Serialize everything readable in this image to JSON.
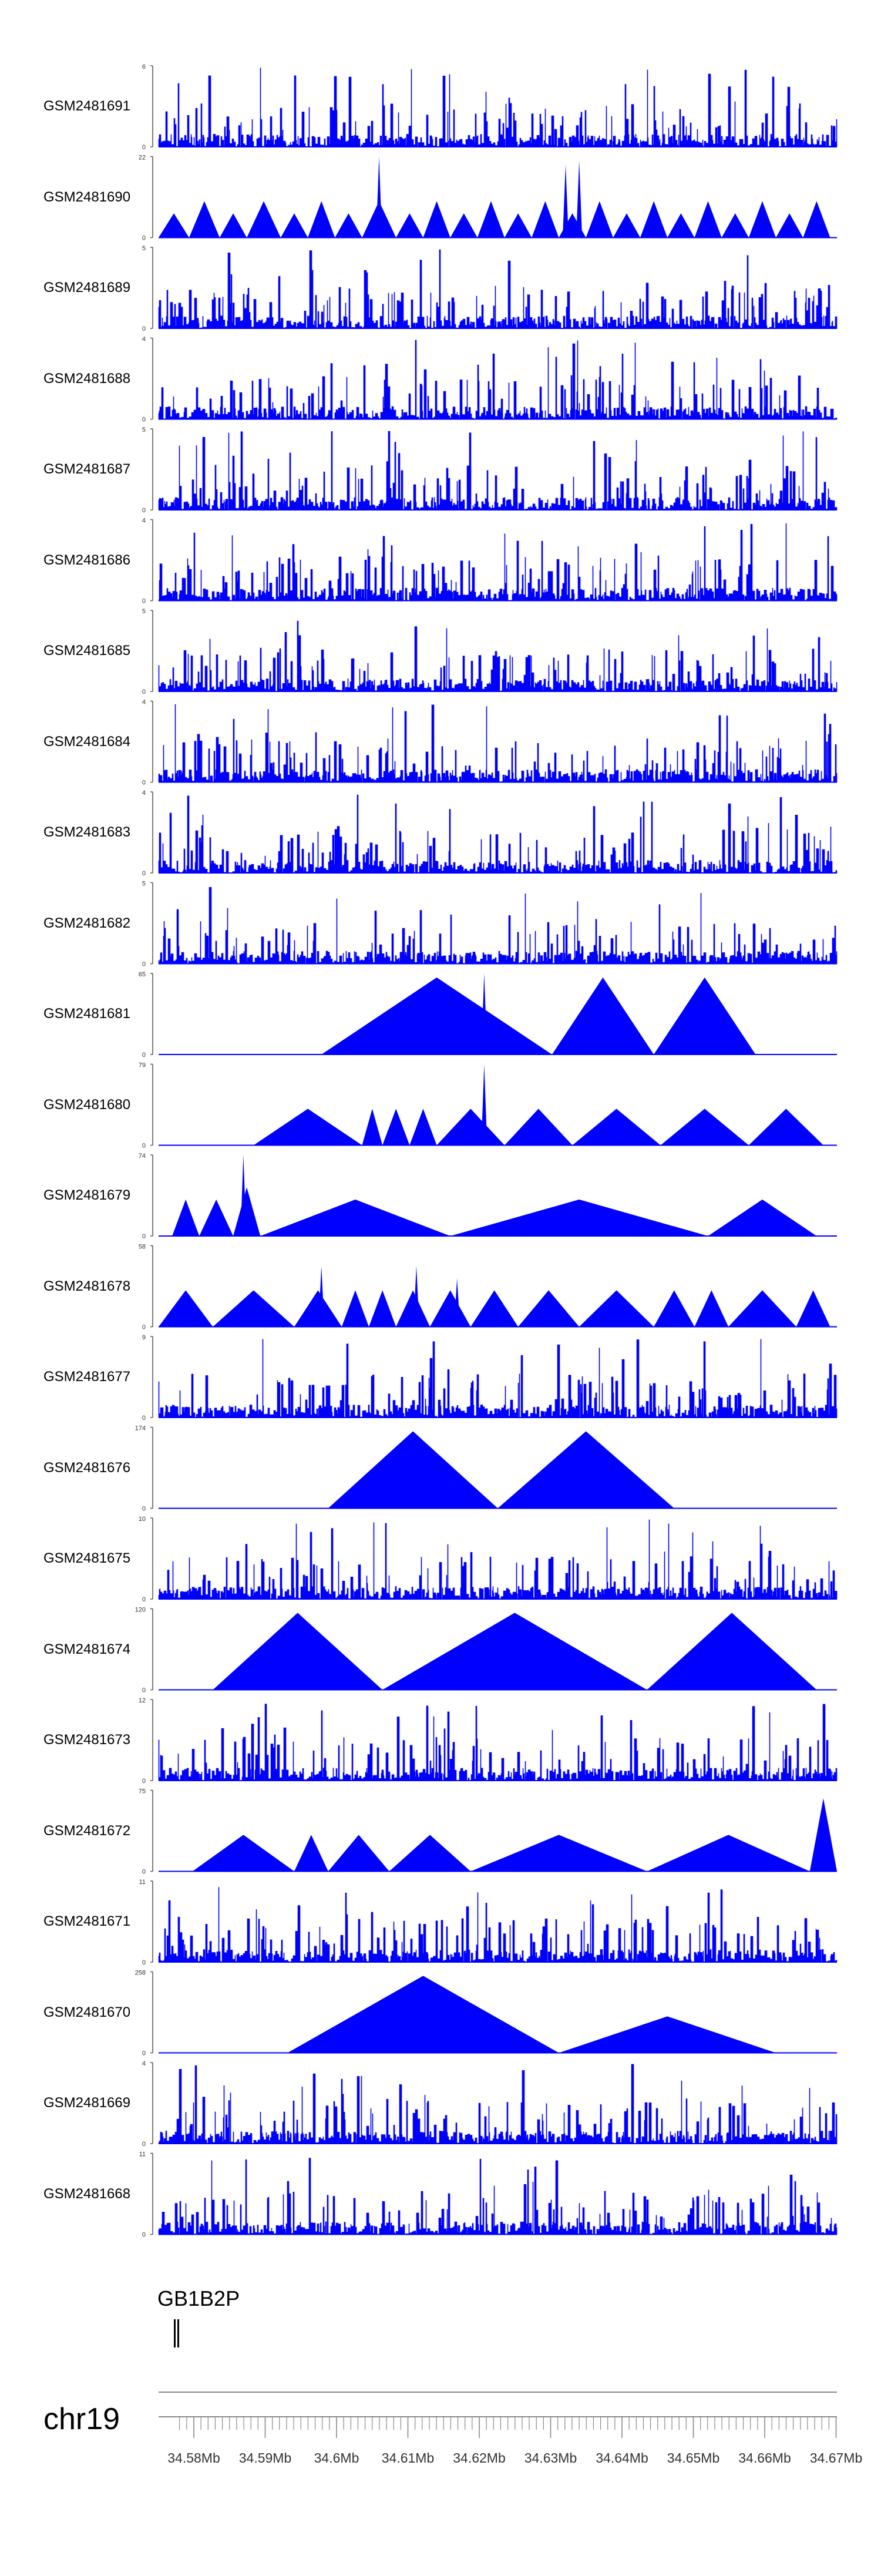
{
  "chart_data": {
    "type": "area",
    "color": "#0000ff",
    "chromosome": "chr19",
    "gene_label": "GB1B2P",
    "x_ticks": [
      "34.58Mb",
      "34.59Mb",
      "34.6Mb",
      "34.61Mb",
      "34.62Mb",
      "34.63Mb",
      "34.64Mb",
      "34.65Mb",
      "34.66Mb",
      "34.67Mb"
    ],
    "tracks": [
      {
        "name": "GSM2481691",
        "ymax": "6",
        "style": "dense"
      },
      {
        "name": "GSM2481690",
        "ymax": "22",
        "style": "teeth",
        "peaks": [
          [
            0.0,
            0.045,
            0.3
          ],
          [
            0.045,
            0.09,
            0.45
          ],
          [
            0.09,
            0.13,
            0.3
          ],
          [
            0.13,
            0.18,
            0.45
          ],
          [
            0.18,
            0.22,
            0.3
          ],
          [
            0.22,
            0.26,
            0.45
          ],
          [
            0.26,
            0.3,
            0.3
          ],
          [
            0.3,
            0.35,
            0.45
          ],
          [
            0.35,
            0.39,
            0.3
          ],
          [
            0.39,
            0.43,
            0.45
          ],
          [
            0.43,
            0.47,
            0.3
          ],
          [
            0.47,
            0.51,
            0.45
          ],
          [
            0.51,
            0.55,
            0.3
          ],
          [
            0.55,
            0.59,
            0.45
          ],
          [
            0.59,
            0.63,
            0.3
          ],
          [
            0.63,
            0.67,
            0.45
          ],
          [
            0.67,
            0.71,
            0.3
          ],
          [
            0.71,
            0.75,
            0.45
          ],
          [
            0.75,
            0.79,
            0.3
          ],
          [
            0.79,
            0.83,
            0.45
          ],
          [
            0.83,
            0.87,
            0.3
          ],
          [
            0.87,
            0.91,
            0.45
          ],
          [
            0.91,
            0.95,
            0.3
          ],
          [
            0.95,
            0.99,
            0.45
          ]
        ],
        "spikes": [
          [
            0.325,
            1.0
          ],
          [
            0.6,
            0.9
          ],
          [
            0.62,
            0.95
          ]
        ]
      },
      {
        "name": "GSM2481689",
        "ymax": "5",
        "style": "dense"
      },
      {
        "name": "GSM2481688",
        "ymax": "4",
        "style": "dense"
      },
      {
        "name": "GSM2481687",
        "ymax": "5",
        "style": "dense"
      },
      {
        "name": "GSM2481686",
        "ymax": "4",
        "style": "dense"
      },
      {
        "name": "GSM2481685",
        "ymax": "5",
        "style": "dense"
      },
      {
        "name": "GSM2481684",
        "ymax": "4",
        "style": "dense"
      },
      {
        "name": "GSM2481683",
        "ymax": "4",
        "style": "dense"
      },
      {
        "name": "GSM2481682",
        "ymax": "5",
        "style": "dense"
      },
      {
        "name": "GSM2481681",
        "ymax": "65",
        "style": "teeth",
        "peaks": [
          [
            0.24,
            0.58,
            0.95
          ],
          [
            0.58,
            0.73,
            0.95
          ],
          [
            0.73,
            0.88,
            0.95
          ]
        ],
        "spikes": [
          [
            0.48,
            1.0
          ]
        ]
      },
      {
        "name": "GSM2481680",
        "ymax": "79",
        "style": "teeth",
        "peaks": [
          [
            0.14,
            0.3,
            0.45
          ],
          [
            0.3,
            0.33,
            0.45
          ],
          [
            0.33,
            0.37,
            0.45
          ],
          [
            0.37,
            0.41,
            0.45
          ],
          [
            0.41,
            0.51,
            0.45
          ],
          [
            0.51,
            0.61,
            0.45
          ],
          [
            0.61,
            0.74,
            0.45
          ],
          [
            0.74,
            0.87,
            0.45
          ],
          [
            0.87,
            0.98,
            0.45
          ]
        ],
        "spikes": [
          [
            0.48,
            1.0
          ]
        ]
      },
      {
        "name": "GSM2481679",
        "ymax": "74",
        "style": "teeth",
        "peaks": [
          [
            0.02,
            0.06,
            0.45
          ],
          [
            0.06,
            0.11,
            0.45
          ],
          [
            0.11,
            0.15,
            0.6
          ],
          [
            0.15,
            0.43,
            0.45
          ],
          [
            0.43,
            0.81,
            0.45
          ],
          [
            0.81,
            0.97,
            0.45
          ]
        ],
        "spikes": [
          [
            0.125,
            1.0
          ]
        ]
      },
      {
        "name": "GSM2481678",
        "ymax": "58",
        "style": "teeth",
        "peaks": [
          [
            0.0,
            0.08,
            0.45
          ],
          [
            0.08,
            0.2,
            0.45
          ],
          [
            0.2,
            0.27,
            0.45
          ],
          [
            0.27,
            0.31,
            0.45
          ],
          [
            0.31,
            0.35,
            0.45
          ],
          [
            0.35,
            0.4,
            0.45
          ],
          [
            0.4,
            0.46,
            0.45
          ],
          [
            0.46,
            0.53,
            0.45
          ],
          [
            0.53,
            0.62,
            0.45
          ],
          [
            0.62,
            0.73,
            0.45
          ],
          [
            0.73,
            0.79,
            0.45
          ],
          [
            0.79,
            0.84,
            0.45
          ],
          [
            0.84,
            0.94,
            0.45
          ],
          [
            0.94,
            0.99,
            0.45
          ]
        ],
        "spikes": [
          [
            0.24,
            0.75
          ],
          [
            0.38,
            0.75
          ],
          [
            0.44,
            0.6
          ]
        ]
      },
      {
        "name": "GSM2481677",
        "ymax": "9",
        "style": "dense"
      },
      {
        "name": "GSM2481676",
        "ymax": "174",
        "style": "teeth",
        "peaks": [
          [
            0.25,
            0.5,
            0.95
          ],
          [
            0.5,
            0.76,
            0.95
          ]
        ],
        "spikes": []
      },
      {
        "name": "GSM2481675",
        "ymax": "10",
        "style": "dense"
      },
      {
        "name": "GSM2481674",
        "ymax": "120",
        "style": "teeth",
        "peaks": [
          [
            0.08,
            0.33,
            0.95
          ],
          [
            0.33,
            0.72,
            0.95
          ],
          [
            0.72,
            0.97,
            0.95
          ]
        ],
        "spikes": []
      },
      {
        "name": "GSM2481673",
        "ymax": "12",
        "style": "dense"
      },
      {
        "name": "GSM2481672",
        "ymax": "75",
        "style": "teeth",
        "peaks": [
          [
            0.05,
            0.2,
            0.45
          ],
          [
            0.2,
            0.25,
            0.45
          ],
          [
            0.25,
            0.34,
            0.45
          ],
          [
            0.34,
            0.46,
            0.45
          ],
          [
            0.46,
            0.72,
            0.45
          ],
          [
            0.72,
            0.96,
            0.45
          ],
          [
            0.96,
            1.0,
            0.9
          ]
        ],
        "spikes": []
      },
      {
        "name": "GSM2481671",
        "ymax": "11",
        "style": "dense"
      },
      {
        "name": "GSM2481670",
        "ymax": "258",
        "style": "teeth",
        "peaks": [
          [
            0.19,
            0.59,
            0.95
          ],
          [
            0.59,
            0.91,
            0.45
          ]
        ],
        "spikes": []
      },
      {
        "name": "GSM2481669",
        "ymax": "4",
        "style": "dense"
      },
      {
        "name": "GSM2481668",
        "ymax": "11",
        "style": "dense"
      }
    ]
  }
}
